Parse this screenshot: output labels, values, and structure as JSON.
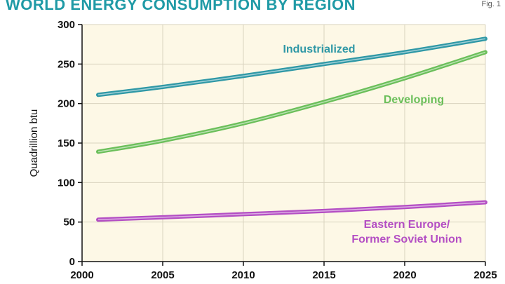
{
  "header": {
    "title": "WORLD ENERGY CONSUMPTION BY REGION",
    "fig_label": "Fig. 1"
  },
  "chart_data": {
    "type": "line",
    "title": "WORLD ENERGY CONSUMPTION BY REGION",
    "xlabel": "",
    "ylabel": "Quadrillion btu",
    "xlim": [
      2000,
      2025
    ],
    "ylim": [
      0,
      300
    ],
    "x_ticks": [
      2000,
      2005,
      2010,
      2015,
      2020,
      2025
    ],
    "y_ticks": [
      0,
      50,
      100,
      150,
      200,
      250,
      300
    ],
    "grid": true,
    "background": "#fdf8e6",
    "series": [
      {
        "name": "Industrialized",
        "color": "#2f98a6",
        "x": [
          2001,
          2005,
          2010,
          2015,
          2020,
          2025
        ],
        "y": [
          211,
          221,
          235,
          250,
          265,
          282
        ]
      },
      {
        "name": "Developing",
        "color": "#6bbf5a",
        "x": [
          2001,
          2005,
          2010,
          2015,
          2020,
          2025
        ],
        "y": [
          139,
          153,
          175,
          202,
          232,
          265
        ]
      },
      {
        "name": "Eastern Europe/ Former Soviet Union",
        "label_lines": [
          "Eastern Europe/",
          "Former Soviet Union"
        ],
        "color": "#b44fc4",
        "x": [
          2001,
          2005,
          2010,
          2015,
          2020,
          2025
        ],
        "y": [
          53,
          56,
          60,
          64,
          69,
          75
        ]
      }
    ]
  }
}
